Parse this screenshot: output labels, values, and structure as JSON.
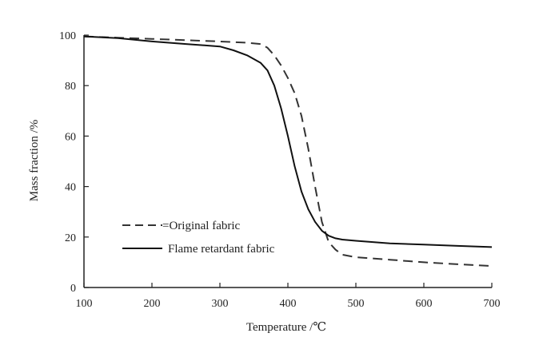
{
  "chart_data": {
    "type": "line",
    "title": "",
    "xlabel": "Temperature /℃",
    "ylabel": "Mass fraction /%",
    "xlim": [
      100,
      700
    ],
    "ylim": [
      0,
      100
    ],
    "xticks": [
      100,
      200,
      300,
      400,
      500,
      600,
      700
    ],
    "yticks": [
      0,
      20,
      40,
      60,
      80,
      100
    ],
    "grid": false,
    "legend_position": "bottom-left",
    "series": [
      {
        "name": "Original fabric",
        "style": "dashed",
        "color": "#333333",
        "x": [
          100,
          150,
          200,
          250,
          300,
          340,
          360,
          370,
          380,
          390,
          400,
          410,
          420,
          430,
          440,
          450,
          460,
          470,
          480,
          500,
          550,
          600,
          650,
          700
        ],
        "y": [
          99.5,
          99,
          98.5,
          98,
          97.5,
          97,
          96.5,
          95,
          92,
          88,
          83,
          77,
          68,
          55,
          40,
          26,
          18,
          15,
          13,
          12,
          11,
          10,
          9.2,
          8.5
        ]
      },
      {
        "name": "Flame retardant fabric",
        "style": "solid",
        "color": "#111111",
        "x": [
          100,
          150,
          200,
          250,
          300,
          320,
          340,
          360,
          370,
          380,
          390,
          400,
          410,
          420,
          430,
          440,
          450,
          460,
          470,
          480,
          500,
          550,
          600,
          650,
          700
        ],
        "y": [
          99.5,
          98.8,
          97.5,
          96.5,
          95.5,
          94,
          92,
          89,
          86,
          80,
          71,
          60,
          48,
          38,
          31,
          26,
          22.5,
          20.5,
          19.5,
          19,
          18.5,
          17.5,
          17,
          16.5,
          16
        ]
      }
    ],
    "legend": [
      {
        "label": "=Original fabric",
        "style": "dashed"
      },
      {
        "label": "Flame retardant fabric",
        "style": "solid"
      }
    ]
  }
}
